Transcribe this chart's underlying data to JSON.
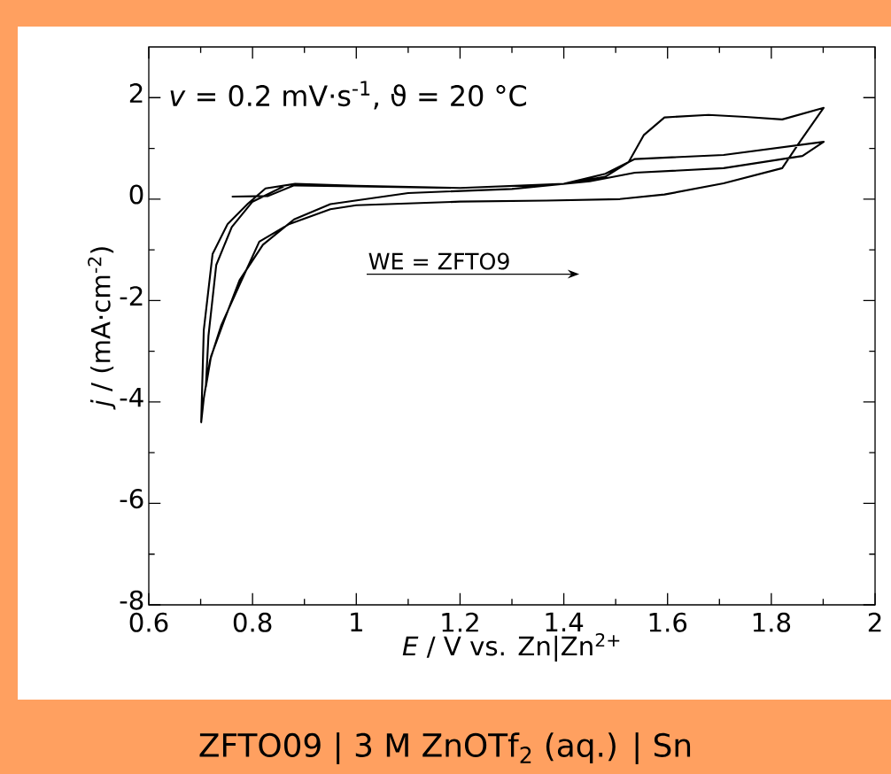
{
  "chart_data": {
    "type": "line",
    "title": "ZFTO09 | 3 M ZnOTf$_{2}$ (aq.) | Sn",
    "xlabel": "*E* / V vs. Zn|Zn$^{2+}$",
    "ylabel": "*j* / (mA·cm$^{-2}$)",
    "annotations": [
      "*v* = 0.2 mV·s$^{-1}$, ϑ = 20 °C",
      "WE = ZFTO9"
    ],
    "xlim": [
      0.6,
      2
    ],
    "ylim": [
      -8,
      3
    ],
    "xticks": [
      0.6,
      0.8,
      1,
      1.2,
      1.4,
      1.6,
      1.8,
      2
    ],
    "yticks": [
      -8,
      -6,
      -4,
      -2,
      0,
      2
    ],
    "line_style": "solid",
    "series": [
      {
        "color": "#000000",
        "x": [
          0.76,
          0.83,
          0.88,
          1.0,
          1.2,
          1.4,
          1.48,
          1.525,
          1.554,
          1.594,
          1.679,
          1.75,
          1.821,
          1.901,
          1.855,
          1.821,
          1.708,
          1.594,
          1.508,
          1.367,
          1.2,
          1.0,
          0.95,
          0.871,
          0.813,
          0.774,
          0.74,
          0.718,
          0.706,
          0.701,
          0.706,
          0.723,
          0.752,
          0.791,
          0.825,
          0.882,
          1.0,
          1.2,
          1.4,
          1.48,
          1.537,
          1.708,
          1.901,
          1.86,
          1.708,
          1.537,
          1.45,
          1.3,
          1.1,
          0.95,
          0.88,
          0.82,
          0.775,
          0.745,
          0.72,
          0.71,
          0.715,
          0.73,
          0.76,
          0.8,
          0.86
        ],
        "values": [
          0.05,
          0.06,
          0.27,
          0.25,
          0.22,
          0.3,
          0.44,
          0.73,
          1.26,
          1.61,
          1.66,
          1.62,
          1.57,
          1.8,
          1.13,
          0.61,
          0.31,
          0.09,
          0.0,
          -0.03,
          -0.05,
          -0.12,
          -0.2,
          -0.49,
          -0.84,
          -1.71,
          -2.48,
          -3.18,
          -3.93,
          -4.4,
          -2.58,
          -1.08,
          -0.49,
          -0.09,
          0.21,
          0.3,
          0.26,
          0.22,
          0.3,
          0.5,
          0.79,
          0.87,
          1.13,
          0.85,
          0.61,
          0.52,
          0.35,
          0.2,
          0.12,
          -0.1,
          -0.4,
          -0.9,
          -1.6,
          -2.4,
          -3.1,
          -3.7,
          -2.7,
          -1.3,
          -0.55,
          -0.05,
          0.25
        ]
      }
    ]
  }
}
